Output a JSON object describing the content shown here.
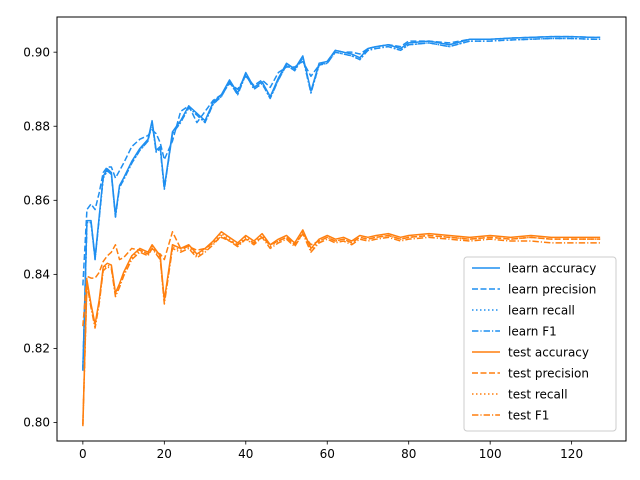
{
  "chart_data": {
    "type": "line",
    "title": "",
    "xlabel": "",
    "ylabel": "",
    "xlim": [
      -6.35,
      133.35
    ],
    "ylim": [
      0.795,
      0.9095
    ],
    "grid": false,
    "legend_position": "lower-right",
    "x_ticks": [
      0,
      20,
      40,
      60,
      80,
      100,
      120
    ],
    "x_tick_labels": [
      "0",
      "20",
      "40",
      "60",
      "80",
      "100",
      "120"
    ],
    "y_ticks": [
      0.8,
      0.82,
      0.84,
      0.86,
      0.88,
      0.9
    ],
    "y_tick_labels": [
      "0.80",
      "0.82",
      "0.84",
      "0.86",
      "0.88",
      "0.90"
    ],
    "x": [
      0,
      1,
      2,
      3,
      4,
      5,
      6,
      7,
      8,
      9,
      10,
      12,
      14,
      16,
      17,
      18,
      19,
      20,
      22,
      24,
      26,
      28,
      30,
      32,
      34,
      36,
      38,
      40,
      42,
      44,
      46,
      48,
      50,
      52,
      54,
      56,
      58,
      60,
      62,
      64,
      66,
      68,
      70,
      72,
      75,
      78,
      80,
      85,
      90,
      95,
      100,
      105,
      110,
      115,
      120,
      125,
      127
    ],
    "series": [
      {
        "name": "learn accuracy",
        "color": "#1f8ff0",
        "dash": "solid",
        "values": [
          0.8145,
          0.8545,
          0.8545,
          0.8445,
          0.8555,
          0.8665,
          0.8685,
          0.8675,
          0.856,
          0.864,
          0.866,
          0.8705,
          0.874,
          0.8765,
          0.8815,
          0.8735,
          0.8745,
          0.8635,
          0.8785,
          0.8815,
          0.8855,
          0.8835,
          0.8815,
          0.8865,
          0.8885,
          0.8925,
          0.889,
          0.8945,
          0.8905,
          0.892,
          0.888,
          0.893,
          0.897,
          0.8955,
          0.899,
          0.8895,
          0.897,
          0.8975,
          0.9005,
          0.9,
          0.8995,
          0.8985,
          0.901,
          0.9015,
          0.902,
          0.901,
          0.9025,
          0.903,
          0.902,
          0.9035,
          0.9035,
          0.9038,
          0.904,
          0.9042,
          0.9042,
          0.904,
          0.904
        ]
      },
      {
        "name": "learn precision",
        "color": "#1f8ff0",
        "dash": "dashed",
        "values": [
          0.837,
          0.8575,
          0.859,
          0.8575,
          0.862,
          0.8675,
          0.869,
          0.869,
          0.866,
          0.868,
          0.87,
          0.8745,
          0.8765,
          0.8775,
          0.879,
          0.878,
          0.8755,
          0.871,
          0.876,
          0.884,
          0.8855,
          0.881,
          0.884,
          0.887,
          0.8885,
          0.8915,
          0.89,
          0.8935,
          0.891,
          0.8925,
          0.8905,
          0.8945,
          0.896,
          0.896,
          0.8975,
          0.8935,
          0.8965,
          0.8975,
          0.9005,
          0.9,
          0.9,
          0.8995,
          0.901,
          0.9015,
          0.902,
          0.9015,
          0.903,
          0.903,
          0.9025,
          0.9035,
          0.9035,
          0.9038,
          0.904,
          0.9042,
          0.9042,
          0.904,
          0.904
        ]
      },
      {
        "name": "learn recall",
        "color": "#1f8ff0",
        "dash": "dotted",
        "values": [
          0.814,
          0.854,
          0.854,
          0.844,
          0.855,
          0.866,
          0.868,
          0.867,
          0.8555,
          0.8635,
          0.8655,
          0.87,
          0.8735,
          0.876,
          0.881,
          0.873,
          0.874,
          0.863,
          0.878,
          0.881,
          0.885,
          0.883,
          0.881,
          0.886,
          0.888,
          0.892,
          0.8885,
          0.894,
          0.89,
          0.8915,
          0.8875,
          0.8925,
          0.8965,
          0.895,
          0.8985,
          0.889,
          0.8965,
          0.897,
          0.9,
          0.8995,
          0.899,
          0.898,
          0.9005,
          0.901,
          0.9015,
          0.9005,
          0.902,
          0.9025,
          0.9015,
          0.903,
          0.903,
          0.9033,
          0.9035,
          0.9037,
          0.9037,
          0.9035,
          0.9035
        ]
      },
      {
        "name": "learn F1",
        "color": "#1f8ff0",
        "dash": "dashdot",
        "values": [
          0.814,
          0.854,
          0.854,
          0.844,
          0.855,
          0.866,
          0.868,
          0.867,
          0.8555,
          0.8635,
          0.8655,
          0.87,
          0.8735,
          0.876,
          0.881,
          0.873,
          0.874,
          0.863,
          0.878,
          0.881,
          0.885,
          0.883,
          0.881,
          0.886,
          0.888,
          0.892,
          0.8885,
          0.894,
          0.89,
          0.8915,
          0.8875,
          0.8925,
          0.8965,
          0.895,
          0.8985,
          0.889,
          0.8965,
          0.897,
          0.9,
          0.8995,
          0.899,
          0.898,
          0.9005,
          0.901,
          0.9015,
          0.9005,
          0.902,
          0.9025,
          0.9015,
          0.903,
          0.903,
          0.9033,
          0.9035,
          0.9037,
          0.9037,
          0.9035,
          0.9035
        ]
      },
      {
        "name": "test accuracy",
        "color": "#ff7f0e",
        "dash": "solid",
        "values": [
          0.7995,
          0.8385,
          0.832,
          0.8265,
          0.833,
          0.842,
          0.843,
          0.8425,
          0.835,
          0.8375,
          0.8405,
          0.845,
          0.847,
          0.846,
          0.848,
          0.8465,
          0.845,
          0.833,
          0.848,
          0.847,
          0.848,
          0.8455,
          0.847,
          0.849,
          0.8515,
          0.85,
          0.8485,
          0.8505,
          0.849,
          0.851,
          0.848,
          0.8495,
          0.8505,
          0.8485,
          0.852,
          0.847,
          0.8495,
          0.8505,
          0.8495,
          0.85,
          0.849,
          0.8505,
          0.85,
          0.8505,
          0.851,
          0.85,
          0.8505,
          0.851,
          0.8505,
          0.85,
          0.8505,
          0.85,
          0.8505,
          0.85,
          0.85,
          0.85,
          0.85
        ]
      },
      {
        "name": "test precision",
        "color": "#ff7f0e",
        "dash": "dashed",
        "values": [
          0.826,
          0.8395,
          0.839,
          0.839,
          0.8405,
          0.8435,
          0.845,
          0.846,
          0.848,
          0.844,
          0.8445,
          0.847,
          0.8465,
          0.8455,
          0.847,
          0.846,
          0.8455,
          0.844,
          0.8515,
          0.847,
          0.8475,
          0.8465,
          0.847,
          0.8485,
          0.85,
          0.849,
          0.848,
          0.8495,
          0.8485,
          0.85,
          0.848,
          0.849,
          0.85,
          0.848,
          0.851,
          0.848,
          0.849,
          0.85,
          0.849,
          0.8495,
          0.8485,
          0.85,
          0.8495,
          0.85,
          0.8505,
          0.8495,
          0.85,
          0.8505,
          0.85,
          0.8495,
          0.85,
          0.8495,
          0.85,
          0.8495,
          0.8495,
          0.8495,
          0.8495
        ]
      },
      {
        "name": "test recall",
        "color": "#ff7f0e",
        "dash": "dotted",
        "values": [
          0.7995,
          0.838,
          0.8315,
          0.826,
          0.8325,
          0.8415,
          0.8425,
          0.842,
          0.8345,
          0.837,
          0.84,
          0.8445,
          0.8465,
          0.8455,
          0.8475,
          0.846,
          0.8445,
          0.8325,
          0.8475,
          0.8465,
          0.8475,
          0.845,
          0.8465,
          0.8485,
          0.851,
          0.8495,
          0.848,
          0.85,
          0.8485,
          0.8505,
          0.8475,
          0.849,
          0.85,
          0.848,
          0.8515,
          0.8465,
          0.849,
          0.85,
          0.849,
          0.8495,
          0.8485,
          0.85,
          0.8495,
          0.85,
          0.8505,
          0.8495,
          0.85,
          0.8505,
          0.85,
          0.8495,
          0.85,
          0.8495,
          0.85,
          0.8495,
          0.8495,
          0.8495,
          0.8495
        ]
      },
      {
        "name": "test F1",
        "color": "#ff7f0e",
        "dash": "dashdot",
        "values": [
          0.799,
          0.8375,
          0.831,
          0.8255,
          0.832,
          0.841,
          0.842,
          0.8415,
          0.834,
          0.8365,
          0.8395,
          0.844,
          0.846,
          0.845,
          0.847,
          0.8455,
          0.844,
          0.832,
          0.847,
          0.846,
          0.847,
          0.8445,
          0.846,
          0.848,
          0.8505,
          0.849,
          0.8475,
          0.8495,
          0.848,
          0.85,
          0.847,
          0.8485,
          0.8495,
          0.8475,
          0.851,
          0.846,
          0.8485,
          0.8495,
          0.8485,
          0.849,
          0.848,
          0.8495,
          0.849,
          0.8495,
          0.85,
          0.849,
          0.8495,
          0.85,
          0.8495,
          0.849,
          0.8495,
          0.849,
          0.849,
          0.8485,
          0.8485,
          0.8485,
          0.8485
        ]
      }
    ]
  }
}
